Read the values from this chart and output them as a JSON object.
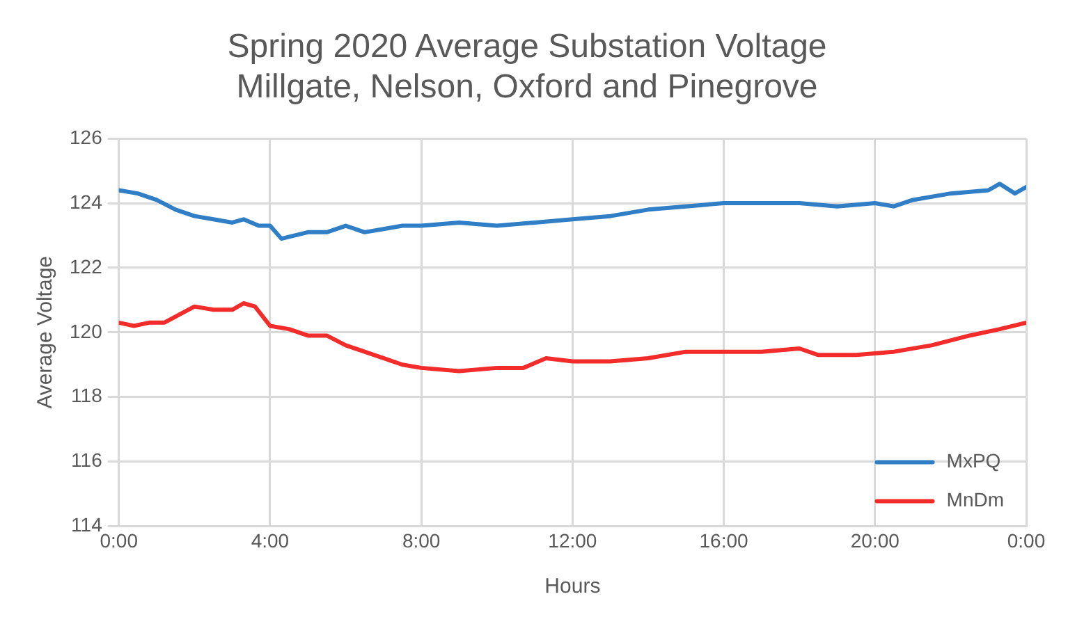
{
  "chart_data": {
    "type": "line",
    "title": "Spring 2020 Average Substation Voltage\nMillgate, Nelson, Oxford and Pinegrove",
    "xlabel": "Hours",
    "ylabel": "Average Voltage",
    "xlim": [
      0,
      24
    ],
    "xticks": [
      {
        "value": 0,
        "label": "0:00"
      },
      {
        "value": 4,
        "label": "4:00"
      },
      {
        "value": 8,
        "label": "8:00"
      },
      {
        "value": 12,
        "label": "12:00"
      },
      {
        "value": 16,
        "label": "16:00"
      },
      {
        "value": 20,
        "label": "20:00"
      },
      {
        "value": 24,
        "label": "0:00"
      }
    ],
    "ylim": [
      114,
      126
    ],
    "yticks": [
      114,
      116,
      118,
      120,
      122,
      124,
      126
    ],
    "grid": true,
    "legend": "bottom right",
    "marker": "none",
    "line_style": "solid",
    "series": [
      {
        "name": "MxPQ",
        "color": "#2f7ec6",
        "x": [
          0,
          0.5,
          1,
          1.5,
          2,
          2.5,
          3,
          3.3,
          3.7,
          4,
          4.3,
          5,
          5.5,
          6,
          6.5,
          7,
          7.5,
          8,
          9,
          10,
          11,
          12,
          13,
          14,
          15,
          16,
          17,
          18,
          19,
          20,
          20.5,
          21,
          22,
          23,
          23.3,
          23.7,
          24
        ],
        "values": [
          124.4,
          124.3,
          124.1,
          123.8,
          123.6,
          123.5,
          123.4,
          123.5,
          123.3,
          123.3,
          122.9,
          123.1,
          123.1,
          123.3,
          123.1,
          123.2,
          123.3,
          123.3,
          123.4,
          123.3,
          123.4,
          123.5,
          123.6,
          123.8,
          123.9,
          124.0,
          124.0,
          124.0,
          123.9,
          124.0,
          123.9,
          124.1,
          124.3,
          124.4,
          124.6,
          124.3,
          124.5
        ]
      },
      {
        "name": "MnDm",
        "color": "#f22b2b",
        "x": [
          0,
          0.4,
          0.8,
          1.2,
          2,
          2.5,
          3,
          3.3,
          3.6,
          4,
          4.5,
          5,
          5.5,
          6,
          6.5,
          7,
          7.5,
          8,
          9,
          10,
          10.7,
          11.3,
          12,
          13,
          14,
          15,
          16,
          17,
          18,
          18.5,
          19.5,
          20.5,
          21.5,
          22.5,
          23.3,
          24
        ],
        "values": [
          120.3,
          120.2,
          120.3,
          120.3,
          120.8,
          120.7,
          120.7,
          120.9,
          120.8,
          120.2,
          120.1,
          119.9,
          119.9,
          119.6,
          119.4,
          119.2,
          119.0,
          118.9,
          118.8,
          118.9,
          118.9,
          119.2,
          119.1,
          119.1,
          119.2,
          119.4,
          119.4,
          119.4,
          119.5,
          119.3,
          119.3,
          119.4,
          119.6,
          119.9,
          120.1,
          120.3
        ]
      }
    ]
  }
}
